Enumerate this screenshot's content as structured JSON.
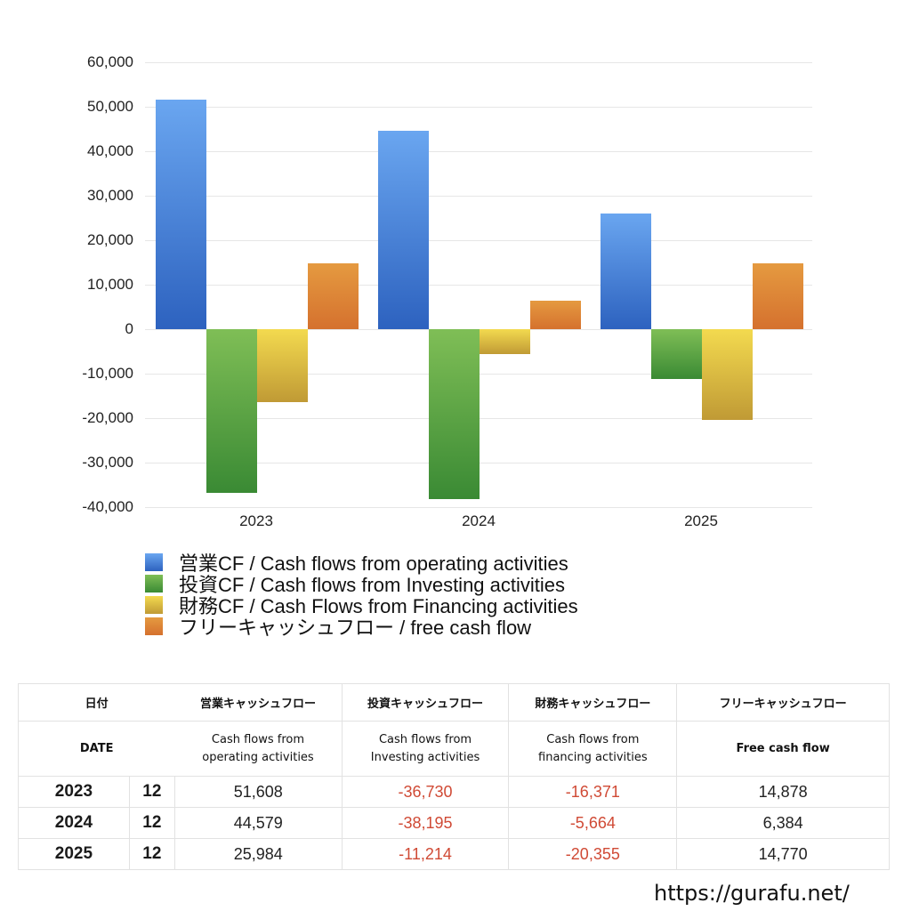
{
  "chart_data": {
    "type": "bar",
    "title": "",
    "xlabel": "",
    "ylabel": "",
    "categories": [
      "2023",
      "2024",
      "2025"
    ],
    "series": [
      {
        "name": "営業CF / Cash flows from operating activities",
        "color": "#4a86dc",
        "values": [
          51608,
          44579,
          25984
        ]
      },
      {
        "name": "投資CF / Cash flows from Investing activities",
        "color": "#5aa545",
        "values": [
          -36730,
          -38195,
          -11214
        ]
      },
      {
        "name": "財務CF / Cash Flows from Financing activities",
        "color": "#dcc245",
        "values": [
          -16371,
          -5664,
          -20355
        ]
      },
      {
        "name": "フリーキャッシュフロー / free cash flow",
        "color": "#df8636",
        "values": [
          14878,
          6384,
          14770
        ]
      }
    ],
    "ylim": [
      -40000,
      60000
    ],
    "yticks": [
      "60,000",
      "50,000",
      "40,000",
      "30,000",
      "20,000",
      "10,000",
      "0",
      "-10,000",
      "-20,000",
      "-30,000",
      "-40,000"
    ],
    "grid": true,
    "legend_position": "bottom"
  },
  "legend": [
    "営業CF / Cash flows from operating activities",
    "投資CF / Cash flows from Investing activities",
    "財務CF / Cash Flows from Financing activities",
    "フリーキャッシュフロー / free cash flow"
  ],
  "table": {
    "header_jp": {
      "date": "日付",
      "operating": "営業キャッシュフロー",
      "investing": "投資キャッシュフロー",
      "financing": "財務キャッシュフロー",
      "free": "フリーキャッシュフロー"
    },
    "header_en": {
      "date": "DATE",
      "operating_1": "Cash flows from",
      "operating_2": "operating activities",
      "investing_1": "Cash flows from",
      "investing_2": "Investing activities",
      "financing_1": "Cash flows from",
      "financing_2": "financing activities",
      "free": "Free cash flow"
    },
    "rows": [
      {
        "year": "2023",
        "month": "12",
        "operating": "51,608",
        "investing": "-36,730",
        "financing": "-16,371",
        "free": "14,878"
      },
      {
        "year": "2024",
        "month": "12",
        "operating": "44,579",
        "investing": "-38,195",
        "financing": "-5,664",
        "free": "6,384"
      },
      {
        "year": "2025",
        "month": "12",
        "operating": "25,984",
        "investing": "-11,214",
        "financing": "-20,355",
        "free": "14,770"
      }
    ]
  },
  "footer": {
    "url": "https://gurafu.net/"
  }
}
